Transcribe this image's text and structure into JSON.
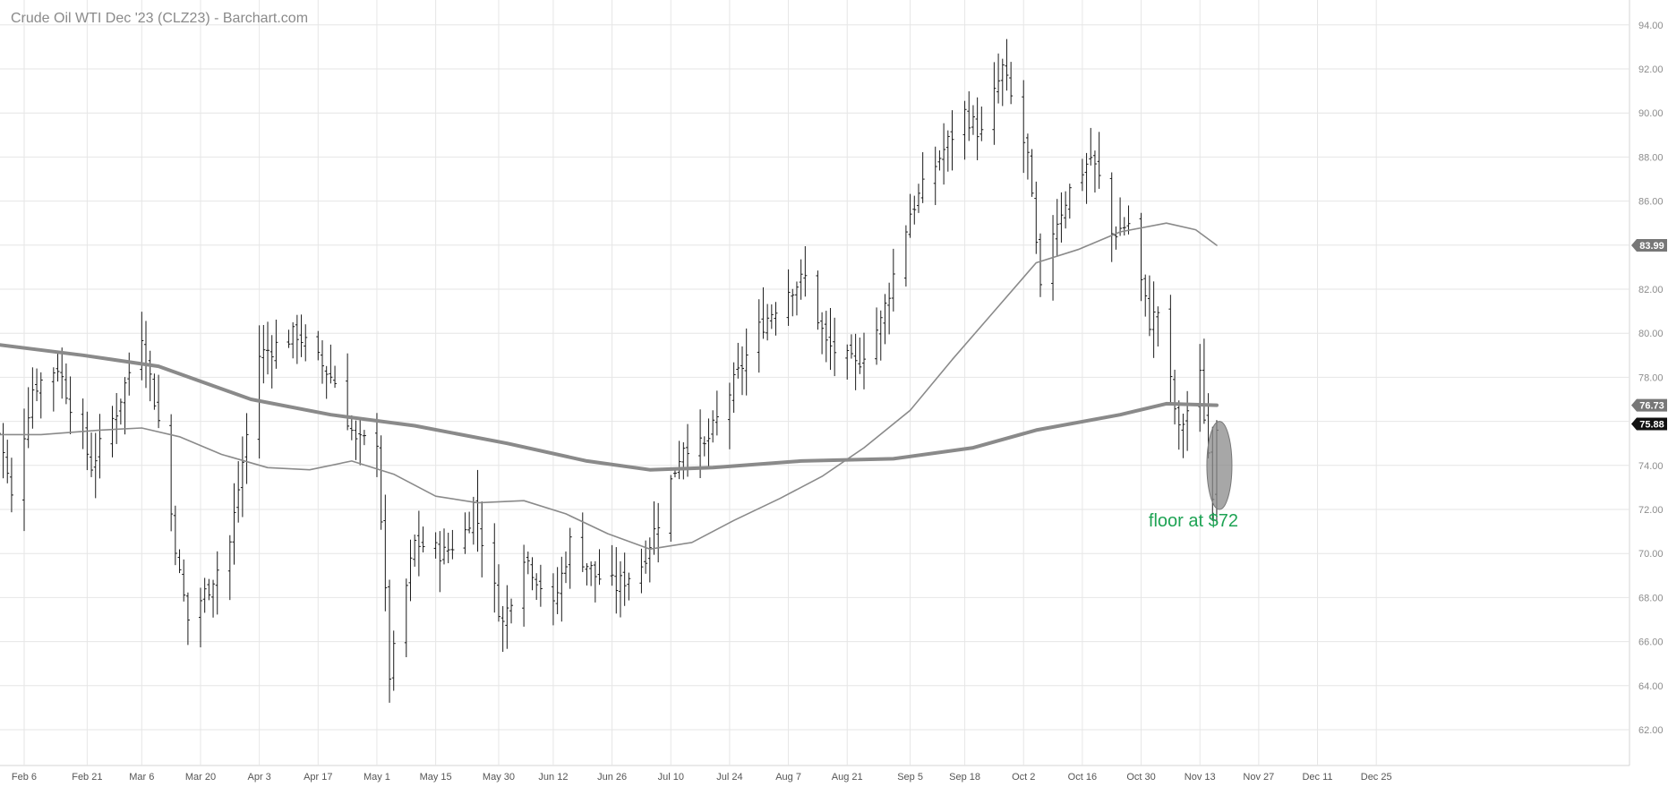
{
  "chart_data": {
    "type": "ohlc",
    "title": "Crude Oil WTI Dec '23 (CLZ23) - Barchart.com",
    "xlabel": "",
    "ylabel": "",
    "ylim": [
      61,
      95
    ],
    "y_ticks": [
      "62.00",
      "64.00",
      "66.00",
      "68.00",
      "70.00",
      "72.00",
      "74.00",
      "76.00",
      "78.00",
      "80.00",
      "82.00",
      "84.00",
      "86.00",
      "88.00",
      "90.00",
      "92.00",
      "94.00"
    ],
    "x_ticks": [
      {
        "label": "Feb 6",
        "date": "2023-02-06"
      },
      {
        "label": "Feb 21",
        "date": "2023-02-21"
      },
      {
        "label": "Mar 6",
        "date": "2023-03-06"
      },
      {
        "label": "Mar 20",
        "date": "2023-03-20"
      },
      {
        "label": "Apr 3",
        "date": "2023-04-03"
      },
      {
        "label": "Apr 17",
        "date": "2023-04-17"
      },
      {
        "label": "May 1",
        "date": "2023-05-01"
      },
      {
        "label": "May 15",
        "date": "2023-05-15"
      },
      {
        "label": "May 30",
        "date": "2023-05-30"
      },
      {
        "label": "Jun 12",
        "date": "2023-06-12"
      },
      {
        "label": "Jun 26",
        "date": "2023-06-26"
      },
      {
        "label": "Jul 10",
        "date": "2023-07-10"
      },
      {
        "label": "Jul 24",
        "date": "2023-07-24"
      },
      {
        "label": "Aug 7",
        "date": "2023-08-07"
      },
      {
        "label": "Aug 21",
        "date": "2023-08-21"
      },
      {
        "label": "Sep 5",
        "date": "2023-09-05"
      },
      {
        "label": "Sep 18",
        "date": "2023-09-18"
      },
      {
        "label": "Oct 2",
        "date": "2023-10-02"
      },
      {
        "label": "Oct 16",
        "date": "2023-10-16"
      },
      {
        "label": "Oct 30",
        "date": "2023-10-30"
      },
      {
        "label": "Nov 13",
        "date": "2023-11-13"
      },
      {
        "label": "Nov 27",
        "date": "2023-11-27"
      },
      {
        "label": "Dec 11",
        "date": "2023-12-11"
      },
      {
        "label": "Dec 25",
        "date": "2023-12-25"
      }
    ],
    "price_key": [
      [
        "2023-01-30",
        76.5
      ],
      [
        "2023-02-03",
        72.5
      ],
      [
        "2023-02-08",
        77.5
      ],
      [
        "2023-02-14",
        78.5
      ],
      [
        "2023-02-22",
        74.0
      ],
      [
        "2023-02-28",
        76.5
      ],
      [
        "2023-03-06",
        80.0
      ],
      [
        "2023-03-10",
        76.0
      ],
      [
        "2023-03-15",
        69.0
      ],
      [
        "2023-03-17",
        67.0
      ],
      [
        "2023-03-22",
        68.5
      ],
      [
        "2023-03-27",
        70.5
      ],
      [
        "2023-04-03",
        79.0
      ],
      [
        "2023-04-12",
        80.0
      ],
      [
        "2023-04-21",
        77.8
      ],
      [
        "2023-04-26",
        75.0
      ],
      [
        "2023-05-01",
        75.2
      ],
      [
        "2023-05-04",
        64.5
      ],
      [
        "2023-05-10",
        70.5
      ],
      [
        "2023-05-17",
        70.0
      ],
      [
        "2023-05-22",
        71.0
      ],
      [
        "2023-05-24",
        72.2
      ],
      [
        "2023-05-31",
        66.8
      ],
      [
        "2023-06-05",
        70.0
      ],
      [
        "2023-06-12",
        67.5
      ],
      [
        "2023-06-16",
        70.5
      ],
      [
        "2023-06-22",
        69.0
      ],
      [
        "2023-06-27",
        68.5
      ],
      [
        "2023-07-03",
        69.5
      ],
      [
        "2023-07-07",
        71.5
      ],
      [
        "2023-07-13",
        75.0
      ],
      [
        "2023-07-18",
        74.8
      ],
      [
        "2023-07-24",
        77.3
      ],
      [
        "2023-07-31",
        80.2
      ],
      [
        "2023-08-07",
        82.0
      ],
      [
        "2023-08-11",
        82.5
      ],
      [
        "2023-08-16",
        79.5
      ],
      [
        "2023-08-23",
        78.5
      ],
      [
        "2023-08-29",
        80.5
      ],
      [
        "2023-09-05",
        85.5
      ],
      [
        "2023-09-12",
        88.0
      ],
      [
        "2023-09-18",
        90.0
      ],
      [
        "2023-09-22",
        89.0
      ],
      [
        "2023-09-27",
        92.0
      ],
      [
        "2023-10-03",
        88.0
      ],
      [
        "2023-10-06",
        81.8
      ],
      [
        "2023-10-09",
        84.7
      ],
      [
        "2023-10-13",
        86.5
      ],
      [
        "2023-10-18",
        88.0
      ],
      [
        "2023-10-20",
        87.0
      ],
      [
        "2023-10-23",
        84.5
      ],
      [
        "2023-10-27",
        85.0
      ],
      [
        "2023-11-01",
        80.5
      ],
      [
        "2023-11-03",
        81.0
      ],
      [
        "2023-11-08",
        75.5
      ],
      [
        "2023-11-13",
        78.0
      ],
      [
        "2023-11-16",
        72.9
      ],
      [
        "2023-11-17",
        75.88
      ]
    ],
    "series": [
      {
        "name": "",
        "kind": "moving-average",
        "width": "thin",
        "color": "#8a8a8a",
        "points": [
          [
            "2023-01-30",
            75.4
          ],
          [
            "2023-02-10",
            75.4
          ],
          [
            "2023-02-24",
            75.6
          ],
          [
            "2023-03-06",
            75.7
          ],
          [
            "2023-03-15",
            75.3
          ],
          [
            "2023-03-25",
            74.5
          ],
          [
            "2023-04-05",
            73.9
          ],
          [
            "2023-04-15",
            73.8
          ],
          [
            "2023-04-25",
            74.2
          ],
          [
            "2023-05-05",
            73.6
          ],
          [
            "2023-05-15",
            72.6
          ],
          [
            "2023-05-25",
            72.3
          ],
          [
            "2023-06-05",
            72.4
          ],
          [
            "2023-06-15",
            71.8
          ],
          [
            "2023-06-25",
            70.9
          ],
          [
            "2023-07-05",
            70.2
          ],
          [
            "2023-07-15",
            70.5
          ],
          [
            "2023-07-25",
            71.5
          ],
          [
            "2023-08-05",
            72.5
          ],
          [
            "2023-08-15",
            73.5
          ],
          [
            "2023-08-25",
            74.8
          ],
          [
            "2023-09-05",
            76.5
          ],
          [
            "2023-09-15",
            78.8
          ],
          [
            "2023-09-25",
            81.0
          ],
          [
            "2023-10-05",
            83.2
          ],
          [
            "2023-10-15",
            83.8
          ],
          [
            "2023-10-25",
            84.6
          ],
          [
            "2023-11-05",
            85.0
          ],
          [
            "2023-11-12",
            84.7
          ],
          [
            "2023-11-17",
            83.99
          ]
        ]
      },
      {
        "name": "",
        "kind": "moving-average",
        "width": "thick",
        "color": "#8a8a8a",
        "points": [
          [
            "2023-01-30",
            79.5
          ],
          [
            "2023-02-20",
            79.0
          ],
          [
            "2023-03-10",
            78.5
          ],
          [
            "2023-04-01",
            77.0
          ],
          [
            "2023-04-20",
            76.3
          ],
          [
            "2023-05-10",
            75.8
          ],
          [
            "2023-06-01",
            75.0
          ],
          [
            "2023-06-20",
            74.2
          ],
          [
            "2023-07-05",
            73.8
          ],
          [
            "2023-07-20",
            73.9
          ],
          [
            "2023-08-10",
            74.2
          ],
          [
            "2023-09-01",
            74.3
          ],
          [
            "2023-09-20",
            74.8
          ],
          [
            "2023-10-05",
            75.6
          ],
          [
            "2023-10-25",
            76.3
          ],
          [
            "2023-11-05",
            76.8
          ],
          [
            "2023-11-17",
            76.73
          ]
        ]
      }
    ],
    "last_labels": [
      {
        "text": "83.99",
        "value": 83.99,
        "color": "#777777"
      },
      {
        "text": "76.73",
        "value": 76.73,
        "color": "#777777"
      },
      {
        "text": "75.88",
        "value": 75.88,
        "color": "#111111"
      }
    ],
    "annotation": {
      "text": "floor at $72",
      "color": "#1ea354",
      "ellipse_date": "2023-11-17",
      "ellipse_price_low": 72.0,
      "ellipse_price_high": 76.0
    }
  }
}
